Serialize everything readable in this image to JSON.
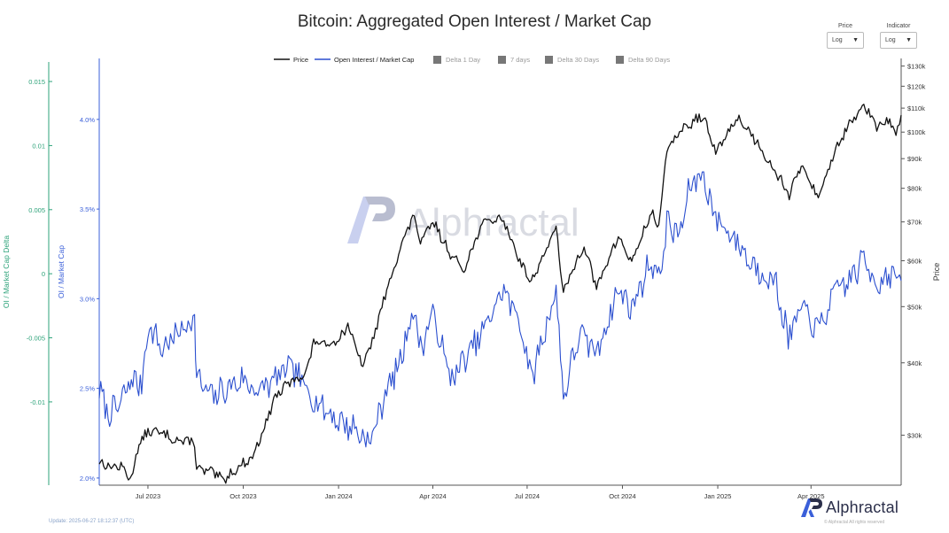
{
  "header": {
    "title": "Bitcoin: Aggregated Open Interest / Market Cap"
  },
  "controls": {
    "price": {
      "label": "Price",
      "value": "Log"
    },
    "indicator": {
      "label": "Indicator",
      "value": "Log"
    }
  },
  "footer": {
    "update": "Update: 2025-06-27 18:12:37 (UTC)",
    "rights": "© Alphractal All rights reserved",
    "brand": "Alphractal"
  },
  "colors": {
    "price": "#111111",
    "oi": "#2b4fcf",
    "delta_axis": "#2ea37a",
    "oi_axis": "#3a5fd9",
    "legend_box": "#777777"
  },
  "chart_data": {
    "type": "line",
    "title": "Bitcoin: Aggregated Open Interest / Market Cap",
    "legend": [
      "Price",
      "Open Interest / Market Cap",
      "Delta 1 Day",
      "7 days",
      "Delta 30 Days",
      "Delta 90 Days"
    ],
    "legend_position": "top-center",
    "watermark": "Alphractal",
    "x_ticks": [
      "Jul 2023",
      "Oct 2023",
      "Jan 2024",
      "Apr 2024",
      "Jul 2024",
      "Oct 2024",
      "Jan 2025",
      "Apr 2025"
    ],
    "x_range": [
      "2023-05-15",
      "2025-06-27"
    ],
    "axes": {
      "delta": {
        "label": "OI / Market Cap Delta",
        "range": [
          -0.0165,
          0.0168
        ],
        "ticks": [
          "0.015",
          "0.01",
          "0.005",
          "0",
          "-0.005",
          "-0.01"
        ],
        "tick_values": [
          0.015,
          0.01,
          0.005,
          0,
          -0.005,
          -0.01
        ]
      },
      "oi": {
        "label": "OI / Market Cap",
        "range": [
          1.96,
          4.34
        ],
        "ticks": [
          "4.0%",
          "3.5%",
          "3.0%",
          "2.5%",
          "2.0%"
        ],
        "tick_values": [
          4.0,
          3.5,
          3.0,
          2.5,
          2.0
        ]
      },
      "price": {
        "label": "Price",
        "scale": "log",
        "range": [
          24600,
          134000
        ],
        "ticks": [
          "$130k",
          "$120k",
          "$110k",
          "$100k",
          "$90k",
          "$80k",
          "$70k",
          "$60k",
          "$50k",
          "$40k",
          "$30k"
        ],
        "tick_values": [
          130000,
          120000,
          110000,
          100000,
          90000,
          80000,
          70000,
          60000,
          50000,
          40000,
          30000
        ]
      }
    },
    "series": [
      {
        "name": "Price",
        "axis": "price",
        "points": [
          [
            "2023-05-15",
            27000
          ],
          [
            "2023-05-25",
            26500
          ],
          [
            "2023-06-05",
            26500
          ],
          [
            "2023-06-15",
            25200
          ],
          [
            "2023-06-21",
            28500
          ],
          [
            "2023-07-01",
            30500
          ],
          [
            "2023-07-15",
            30200
          ],
          [
            "2023-08-01",
            29300
          ],
          [
            "2023-08-15",
            29200
          ],
          [
            "2023-08-17",
            26200
          ],
          [
            "2023-09-01",
            25900
          ],
          [
            "2023-09-11",
            25100
          ],
          [
            "2023-09-25",
            26300
          ],
          [
            "2023-10-10",
            27500
          ],
          [
            "2023-10-23",
            31500
          ],
          [
            "2023-11-01",
            35000
          ],
          [
            "2023-11-15",
            37000
          ],
          [
            "2023-12-01",
            38500
          ],
          [
            "2023-12-08",
            43500
          ],
          [
            "2023-12-20",
            43000
          ],
          [
            "2024-01-01",
            44000
          ],
          [
            "2024-01-10",
            46500
          ],
          [
            "2024-01-23",
            39500
          ],
          [
            "2024-02-01",
            42500
          ],
          [
            "2024-02-15",
            52000
          ],
          [
            "2024-02-28",
            62000
          ],
          [
            "2024-03-14",
            72000
          ],
          [
            "2024-03-20",
            64000
          ],
          [
            "2024-04-01",
            70000
          ],
          [
            "2024-04-18",
            61500
          ],
          [
            "2024-05-01",
            58000
          ],
          [
            "2024-05-20",
            70000
          ],
          [
            "2024-06-07",
            71000
          ],
          [
            "2024-06-24",
            60000
          ],
          [
            "2024-07-05",
            55000
          ],
          [
            "2024-07-29",
            68000
          ],
          [
            "2024-08-05",
            52500
          ],
          [
            "2024-08-25",
            64000
          ],
          [
            "2024-09-06",
            53500
          ],
          [
            "2024-09-27",
            66000
          ],
          [
            "2024-10-10",
            59500
          ],
          [
            "2024-10-29",
            72500
          ],
          [
            "2024-11-05",
            69000
          ],
          [
            "2024-11-13",
            92000
          ],
          [
            "2024-11-22",
            99000
          ],
          [
            "2024-12-05",
            103000
          ],
          [
            "2024-12-17",
            107000
          ],
          [
            "2024-12-30",
            92000
          ],
          [
            "2025-01-20",
            106000
          ],
          [
            "2025-02-01",
            100000
          ],
          [
            "2025-02-25",
            86000
          ],
          [
            "2025-03-11",
            78000
          ],
          [
            "2025-03-24",
            88000
          ],
          [
            "2025-04-08",
            76500
          ],
          [
            "2025-04-25",
            94000
          ],
          [
            "2025-05-08",
            103000
          ],
          [
            "2025-05-22",
            111000
          ],
          [
            "2025-06-05",
            101000
          ],
          [
            "2025-06-13",
            106000
          ],
          [
            "2025-06-22",
            99000
          ],
          [
            "2025-06-27",
            107000
          ]
        ]
      },
      {
        "name": "Open Interest / Market Cap",
        "axis": "oi",
        "points": [
          [
            "2023-05-15",
            2.48
          ],
          [
            "2023-05-25",
            2.35
          ],
          [
            "2023-06-05",
            2.42
          ],
          [
            "2023-06-15",
            2.55
          ],
          [
            "2023-06-25",
            2.52
          ],
          [
            "2023-07-01",
            2.85
          ],
          [
            "2023-07-15",
            2.72
          ],
          [
            "2023-08-01",
            2.82
          ],
          [
            "2023-08-15",
            2.9
          ],
          [
            "2023-08-17",
            2.55
          ],
          [
            "2023-09-01",
            2.45
          ],
          [
            "2023-09-15",
            2.5
          ],
          [
            "2023-10-01",
            2.55
          ],
          [
            "2023-10-15",
            2.48
          ],
          [
            "2023-11-01",
            2.55
          ],
          [
            "2023-11-15",
            2.62
          ],
          [
            "2023-12-01",
            2.5
          ],
          [
            "2023-12-15",
            2.4
          ],
          [
            "2024-01-01",
            2.32
          ],
          [
            "2024-01-15",
            2.28
          ],
          [
            "2024-02-01",
            2.2
          ],
          [
            "2024-02-15",
            2.48
          ],
          [
            "2024-02-28",
            2.62
          ],
          [
            "2024-03-13",
            2.95
          ],
          [
            "2024-03-20",
            2.72
          ],
          [
            "2024-04-01",
            2.92
          ],
          [
            "2024-04-18",
            2.55
          ],
          [
            "2024-05-01",
            2.65
          ],
          [
            "2024-05-20",
            2.82
          ],
          [
            "2024-06-07",
            3.05
          ],
          [
            "2024-06-24",
            2.88
          ],
          [
            "2024-07-05",
            2.55
          ],
          [
            "2024-07-29",
            3.05
          ],
          [
            "2024-08-05",
            2.45
          ],
          [
            "2024-08-20",
            2.8
          ],
          [
            "2024-09-06",
            2.7
          ],
          [
            "2024-09-27",
            3.05
          ],
          [
            "2024-10-10",
            2.95
          ],
          [
            "2024-10-29",
            3.22
          ],
          [
            "2024-11-05",
            3.1
          ],
          [
            "2024-11-13",
            3.42
          ],
          [
            "2024-11-25",
            3.35
          ],
          [
            "2024-12-05",
            3.62
          ],
          [
            "2024-12-17",
            3.7
          ],
          [
            "2024-12-30",
            3.45
          ],
          [
            "2025-01-20",
            3.32
          ],
          [
            "2025-02-01",
            3.2
          ],
          [
            "2025-02-25",
            3.1
          ],
          [
            "2025-03-10",
            2.78
          ],
          [
            "2025-03-24",
            2.95
          ],
          [
            "2025-04-08",
            2.82
          ],
          [
            "2025-04-25",
            3.05
          ],
          [
            "2025-05-08",
            3.1
          ],
          [
            "2025-05-22",
            3.22
          ],
          [
            "2025-06-05",
            3.08
          ],
          [
            "2025-06-15",
            3.15
          ],
          [
            "2025-06-27",
            3.1
          ]
        ]
      }
    ]
  }
}
